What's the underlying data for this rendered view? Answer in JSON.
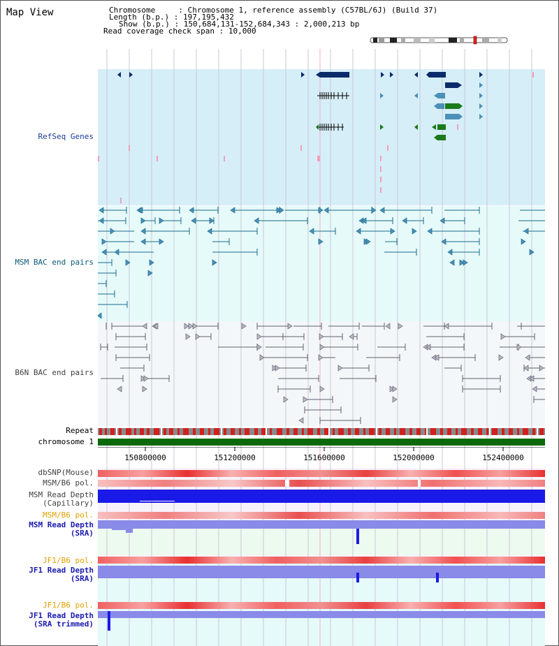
{
  "title": "Map View",
  "header": {
    "chromosome_key": "Chromosome",
    "chromosome_val": "Chromosome 1, reference assembly (C57BL/6J) (Build 37)",
    "length_key": "Length (b.p.)",
    "length_val": "197,195,432",
    "show_key": "Show (b.p.)",
    "show_val": "150,684,131-152,684,343 : 2,000,213 bp",
    "coverage_key": "Read coverage check span",
    "coverage_val": "10,000"
  },
  "tracks": {
    "refseq": "RefSeq Genes",
    "msm_bac": "MSM BAC end pairs",
    "b6n_bac": "B6N BAC end pairs",
    "repeat": "Repeat",
    "chromosome": "chromosome 1",
    "dbsnp": "dbSNP(Mouse)",
    "msm_b6_pol_1": "MSM/B6 pol.",
    "msm_depth_cap_1": "MSM Read Depth",
    "msm_depth_cap_2": "(Capillary)",
    "msm_b6_pol_2": "MSM/B6 pol.",
    "msm_depth_sra_1": "MSM Read Depth",
    "msm_depth_sra_2": "(SRA)",
    "jf1_b6_pol_1": "JF1/B6 pol.",
    "jf1_depth_sra_1": "JF1 Read Depth",
    "jf1_depth_sra_2": "(SRA)",
    "jf1_b6_pol_2": "JF1/B6 pol.",
    "jf1_depth_trim_1": "JF1 Read Depth",
    "jf1_depth_trim_2": "(SRA trimmed)"
  },
  "ruler": {
    "ticks": [
      "150800000",
      "151200000",
      "151600000",
      "152000000",
      "152400000"
    ]
  },
  "colors": {
    "refseq_bg": "#d6eef8",
    "msm_bg": "#e6fafa",
    "b6n_bg": "#f4f7f9",
    "gene_dark": "#0a2a6a",
    "gene_mid": "#4a90b8",
    "gene_green": "#1a7a1a",
    "msm_line": "#1a6a8a",
    "b6n_line": "#606070",
    "chrom_bar": "#0a6a0a",
    "pol_red": "#e83030",
    "depth_blue": "#1a1ae8",
    "depth_light": "#8a8ae8",
    "label_gray": "#404040",
    "label_blue": "#1a3a9a",
    "label_orange": "#e0a000",
    "label_teal": "#0a5a7a"
  }
}
